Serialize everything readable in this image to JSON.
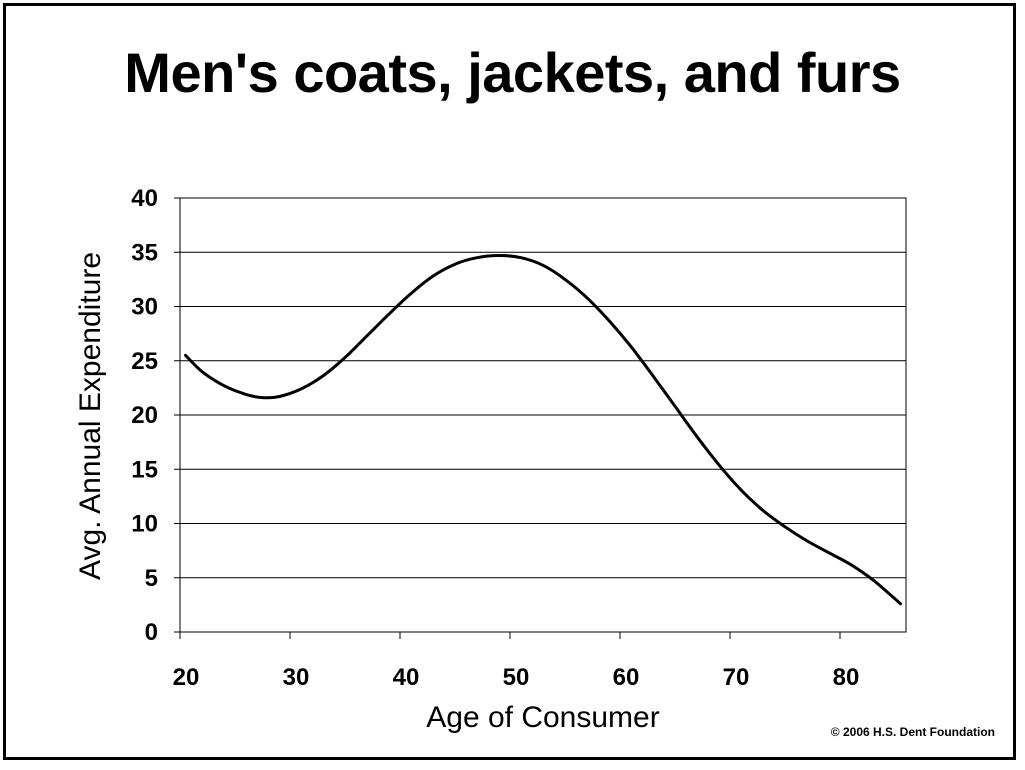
{
  "chart_data": {
    "type": "line",
    "title": "Men's coats, jackets, and furs",
    "xlabel": "Age of Consumer",
    "ylabel": "Avg. Annual Expenditure",
    "xlim": [
      20,
      86
    ],
    "ylim": [
      0,
      40
    ],
    "x_ticks": [
      "20",
      "30",
      "40",
      "50",
      "60",
      "70",
      "80"
    ],
    "y_ticks": [
      "0",
      "5",
      "10",
      "15",
      "20",
      "25",
      "30",
      "35",
      "40"
    ],
    "grid": "horizontal",
    "legend": "none",
    "series": [
      {
        "color": "#000000",
        "x": [
          20.5,
          22,
          24,
          26,
          27.5,
          29,
          31,
          33,
          35,
          37,
          39,
          41,
          43,
          45,
          47,
          49,
          51,
          53,
          55,
          57,
          59,
          61,
          63,
          65,
          67,
          69,
          71,
          73,
          75,
          77,
          79,
          81,
          83,
          84.5,
          85.5
        ],
        "y": [
          25.5,
          24.0,
          22.7,
          21.9,
          21.6,
          21.7,
          22.4,
          23.6,
          25.3,
          27.3,
          29.3,
          31.2,
          32.8,
          33.9,
          34.5,
          34.7,
          34.5,
          33.8,
          32.5,
          30.8,
          28.7,
          26.3,
          23.6,
          20.8,
          18.0,
          15.4,
          13.1,
          11.2,
          9.7,
          8.4,
          7.3,
          6.2,
          4.8,
          3.5,
          2.6
        ]
      }
    ]
  },
  "credit": "© 2006 H.S. Dent Foundation"
}
